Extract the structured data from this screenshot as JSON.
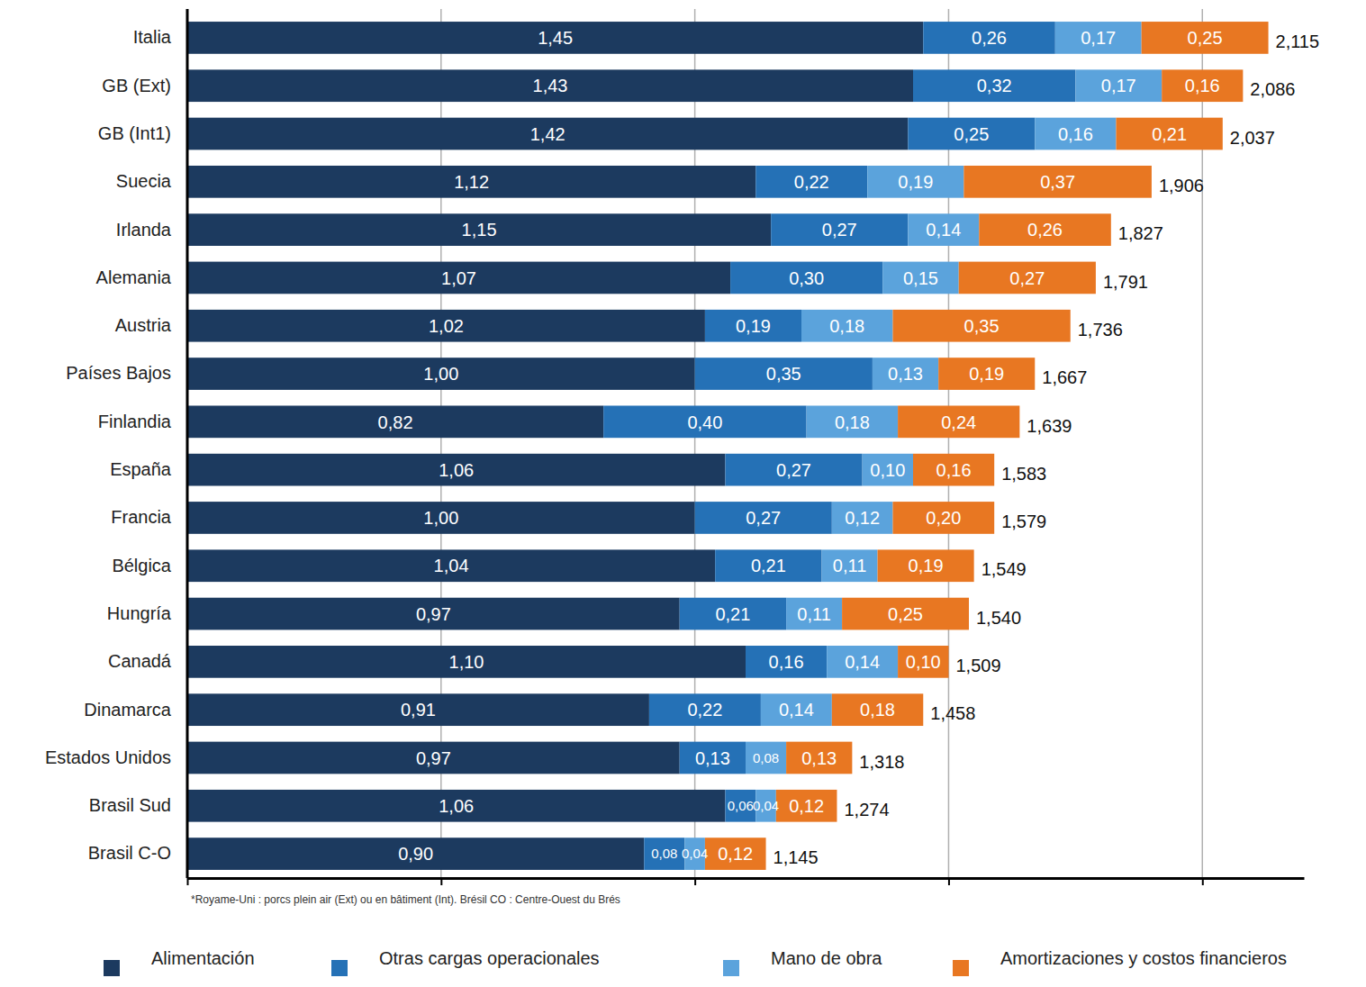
{
  "chart_data": {
    "type": "bar",
    "orientation": "horizontal",
    "stacked": true,
    "data_labels": true,
    "grid": true,
    "legend": "bottom",
    "tick_labels": "y",
    "annotations": [
      "*Royame-Uni : porcs plein air (Ext) ou en bâtiment (Int). Brésil CO : Centre-Ouest du Brés"
    ],
    "categories": [
      "Italia",
      "GB (Ext)",
      "GB (Int1)",
      "Suecia",
      "Irlanda",
      "Alemania",
      "Austria",
      "Países Bajos",
      "Finlandia",
      "España",
      "Francia",
      "Bélgica",
      "Hungría",
      "Canadá",
      "Dinamarca",
      "Estados Unidos",
      "Brasil Sud",
      "Brasil C-O"
    ],
    "xlim": [
      0,
      2.2
    ],
    "xticks": [
      0,
      0.5,
      1,
      1.5,
      2
    ],
    "series": [
      {
        "name": "Alimentación",
        "color": "#1c3a5f",
        "values": [
          1.45,
          1.43,
          1.42,
          1.12,
          1.15,
          1.07,
          1.02,
          1.0,
          0.82,
          1.06,
          1.0,
          1.04,
          0.97,
          1.1,
          0.91,
          0.97,
          1.06,
          0.9
        ],
        "value_labels": [
          "1,45",
          "1,43",
          "1,42",
          "1,12",
          "1,15",
          "1,07",
          "1,02",
          "1,00",
          "0,82",
          "1,06",
          "1,00",
          "1,04",
          "0,97",
          "1,10",
          "0,91",
          "0,97",
          "1,06",
          "0,90"
        ]
      },
      {
        "name": "Otras cargas operacionales",
        "color": "#2571b6",
        "values": [
          0.26,
          0.32,
          0.25,
          0.22,
          0.27,
          0.3,
          0.19,
          0.35,
          0.4,
          0.27,
          0.27,
          0.21,
          0.21,
          0.16,
          0.22,
          0.13,
          0.06,
          0.08
        ],
        "value_labels": [
          "0,26",
          "0,32",
          "0,25",
          "0,22",
          "0,27",
          "0,30",
          "0,19",
          "0,35",
          "0,40",
          "0,27",
          "0,27",
          "0,21",
          "0,21",
          "0,16",
          "0,22",
          "0,13",
          "0,06",
          "0,08"
        ]
      },
      {
        "name": "Mano de obra",
        "color": "#5ba3dc",
        "values": [
          0.17,
          0.17,
          0.16,
          0.19,
          0.14,
          0.15,
          0.18,
          0.13,
          0.18,
          0.1,
          0.12,
          0.11,
          0.11,
          0.14,
          0.14,
          0.08,
          0.04,
          0.04
        ],
        "value_labels": [
          "0,17",
          "0,17",
          "0,16",
          "0,19",
          "0,14",
          "0,15",
          "0,18",
          "0,13",
          "0,18",
          "0,10",
          "0,12",
          "0,11",
          "0,11",
          "0,14",
          "0,14",
          "0,08",
          "0,04",
          "0,04"
        ]
      },
      {
        "name": "Amortizaciones y costos financieros",
        "color": "#e87722",
        "values": [
          0.25,
          0.16,
          0.21,
          0.37,
          0.26,
          0.27,
          0.35,
          0.19,
          0.24,
          0.16,
          0.2,
          0.19,
          0.25,
          0.1,
          0.18,
          0.13,
          0.12,
          0.12
        ],
        "value_labels": [
          "0,25",
          "0,16",
          "0,21",
          "0,37",
          "0,26",
          "0,27",
          "0,35",
          "0,19",
          "0,24",
          "0,16",
          "0,20",
          "0,19",
          "0,25",
          "0,10",
          "0,18",
          "0,13",
          "0,12",
          "0,12"
        ]
      }
    ],
    "totals": {
      "values": [
        2.115,
        2.086,
        2.037,
        1.906,
        1.827,
        1.791,
        1.736,
        1.667,
        1.639,
        1.583,
        1.579,
        1.549,
        1.54,
        1.509,
        1.458,
        1.318,
        1.274,
        1.145
      ],
      "value_labels": [
        "2,115",
        "2,086",
        "2,037",
        "1,906",
        "1,827",
        "1,791",
        "1,736",
        "1,667",
        "1,639",
        "1,583",
        "1,579",
        "1,549",
        "1,540",
        "1,509",
        "1,458",
        "1,318",
        "1,274",
        "1,145"
      ]
    }
  }
}
